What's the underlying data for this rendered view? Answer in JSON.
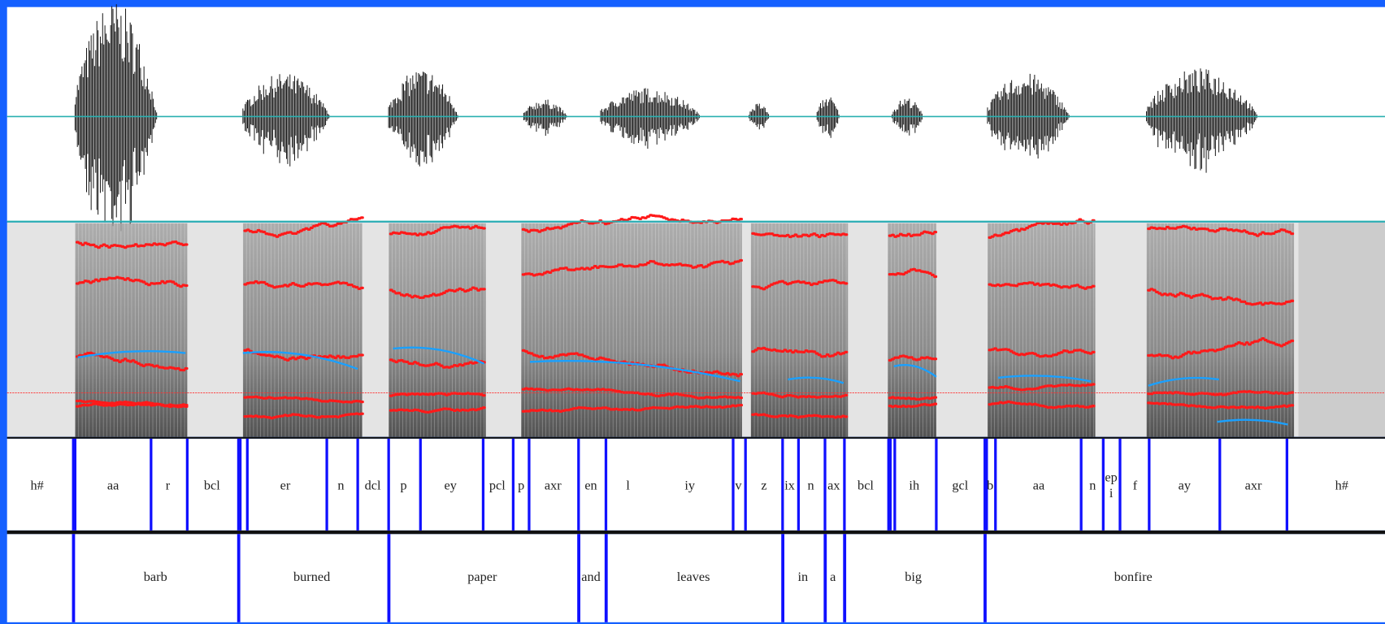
{
  "phones": [
    "h#",
    "aa",
    "r",
    "bcl",
    "er",
    "n",
    "dcl",
    "p",
    "ey",
    "pcl",
    "p",
    "axr",
    "en",
    "l",
    "iy",
    "v",
    "z",
    "ix",
    "n",
    "ax",
    "bcl",
    "ih",
    "gcl",
    "b",
    "aa",
    "n",
    [
      "ep",
      "i"
    ],
    "f",
    "ay",
    "axr",
    "h#"
  ],
  "words": [
    "barb",
    "burned",
    "paper",
    "and",
    "leaves",
    "in",
    "a",
    "big",
    "bonfire"
  ]
}
